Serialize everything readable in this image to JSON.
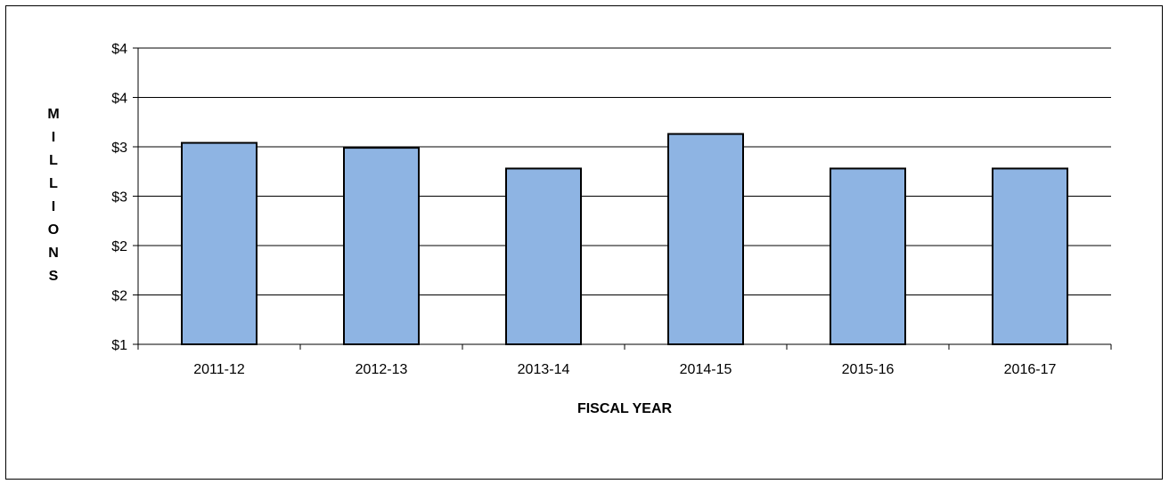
{
  "chart_data": {
    "type": "bar",
    "title": "",
    "xlabel": "FISCAL YEAR",
    "ylabel": "MILLIONS",
    "categories": [
      "2011-12",
      "2012-13",
      "2013-14",
      "2014-15",
      "2015-16",
      "2016-17"
    ],
    "values": [
      3.04,
      2.99,
      2.78,
      3.13,
      2.78,
      2.78
    ],
    "ylim": [
      1.0,
      4.0
    ],
    "y_ticks": [
      1.0,
      1.5,
      2.0,
      2.5,
      3.0,
      3.5,
      4.0
    ],
    "y_tick_labels": [
      "$1",
      "$2",
      "$2",
      "$3",
      "$3",
      "$4",
      "$4"
    ],
    "grid": true,
    "legend": "none",
    "bar_color": "#8EB4E3",
    "bar_edge_color": "#000000"
  }
}
